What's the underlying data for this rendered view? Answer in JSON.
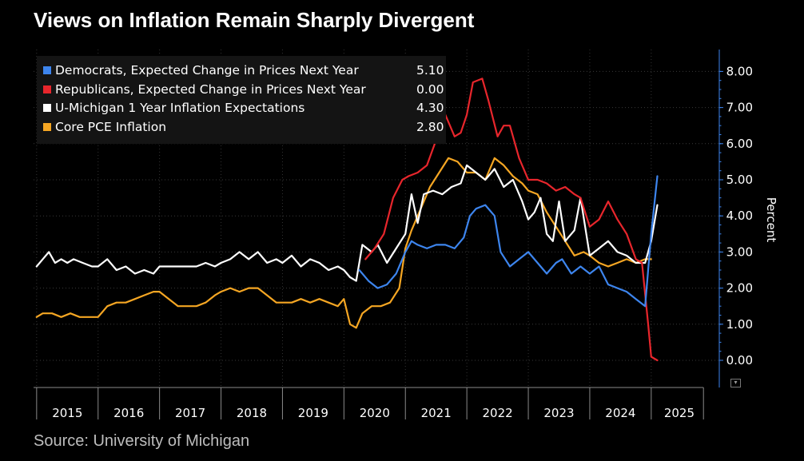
{
  "title": "Views on Inflation Remain Sharply Divergent",
  "source": "Source: University of Michigan",
  "chart_data": {
    "type": "line",
    "title": "Views on Inflation Remain Sharply Divergent",
    "ylabel": "Percent",
    "ylim": [
      -0.5,
      8.5
    ],
    "y_ticks": [
      "0.00",
      "1.00",
      "2.00",
      "3.00",
      "4.00",
      "5.00",
      "6.00",
      "7.00",
      "8.00"
    ],
    "x_ticks": [
      "2015",
      "2016",
      "2017",
      "2018",
      "2019",
      "2020",
      "2021",
      "2022",
      "2023",
      "2024",
      "2025"
    ],
    "xlim": [
      2014.95,
      2025.85
    ],
    "legend_position": "top-left",
    "series": [
      {
        "name": "Democrats, Expected Change in Prices Next Year",
        "value_label": "5.10",
        "color": "#3d85ee",
        "x": [
          2020.25,
          2020.4,
          2020.55,
          2020.7,
          2020.85,
          2021.0,
          2021.1,
          2021.2,
          2021.35,
          2021.5,
          2021.65,
          2021.8,
          2021.95,
          2022.05,
          2022.15,
          2022.3,
          2022.45,
          2022.55,
          2022.7,
          2022.85,
          2023.0,
          2023.15,
          2023.3,
          2023.45,
          2023.55,
          2023.7,
          2023.85,
          2024.0,
          2024.15,
          2024.3,
          2024.45,
          2024.6,
          2024.75,
          2024.9,
          2025.0,
          2025.1
        ],
        "y": [
          2.5,
          2.2,
          2.0,
          2.1,
          2.4,
          3.0,
          3.3,
          3.2,
          3.1,
          3.2,
          3.2,
          3.1,
          3.4,
          4.0,
          4.2,
          4.3,
          4.0,
          3.0,
          2.6,
          2.8,
          3.0,
          2.7,
          2.4,
          2.7,
          2.8,
          2.4,
          2.6,
          2.4,
          2.6,
          2.1,
          2.0,
          1.9,
          1.7,
          1.5,
          3.5,
          5.1
        ]
      },
      {
        "name": "Republicans, Expected Change in Prices Next Year",
        "value_label": "0.00",
        "color": "#e8262c",
        "x": [
          2020.35,
          2020.5,
          2020.65,
          2020.8,
          2020.95,
          2021.05,
          2021.2,
          2021.35,
          2021.5,
          2021.65,
          2021.8,
          2021.9,
          2022.0,
          2022.1,
          2022.25,
          2022.35,
          2022.5,
          2022.6,
          2022.7,
          2022.85,
          2023.0,
          2023.15,
          2023.3,
          2023.45,
          2023.6,
          2023.75,
          2023.85,
          2024.0,
          2024.15,
          2024.3,
          2024.45,
          2024.6,
          2024.75,
          2024.85,
          2024.95,
          2025.0,
          2025.1
        ],
        "y": [
          2.8,
          3.1,
          3.5,
          4.5,
          5.0,
          5.1,
          5.2,
          5.4,
          6.1,
          6.8,
          6.2,
          6.3,
          6.8,
          7.7,
          7.8,
          7.2,
          6.2,
          6.5,
          6.5,
          5.6,
          5.0,
          5.0,
          4.9,
          4.7,
          4.8,
          4.6,
          4.5,
          3.7,
          3.9,
          4.4,
          3.9,
          3.5,
          2.8,
          2.7,
          1.0,
          0.1,
          0.0
        ]
      },
      {
        "name": "U-Michigan 1 Year Inflation Expectations",
        "value_label": "4.30",
        "color": "#ffffff",
        "x": [
          2015.0,
          2015.1,
          2015.2,
          2015.3,
          2015.4,
          2015.5,
          2015.6,
          2015.75,
          2015.9,
          2016.0,
          2016.15,
          2016.3,
          2016.45,
          2016.6,
          2016.75,
          2016.9,
          2017.0,
          2017.15,
          2017.3,
          2017.45,
          2017.6,
          2017.75,
          2017.9,
          2018.0,
          2018.15,
          2018.3,
          2018.45,
          2018.6,
          2018.75,
          2018.9,
          2019.0,
          2019.15,
          2019.3,
          2019.45,
          2019.6,
          2019.75,
          2019.9,
          2020.0,
          2020.1,
          2020.2,
          2020.3,
          2020.45,
          2020.55,
          2020.7,
          2020.85,
          2021.0,
          2021.1,
          2021.2,
          2021.3,
          2021.45,
          2021.6,
          2021.75,
          2021.9,
          2022.0,
          2022.15,
          2022.3,
          2022.45,
          2022.6,
          2022.75,
          2022.9,
          2023.0,
          2023.1,
          2023.2,
          2023.3,
          2023.4,
          2023.5,
          2023.6,
          2023.75,
          2023.85,
          2024.0,
          2024.15,
          2024.3,
          2024.45,
          2024.6,
          2024.75,
          2024.9,
          2025.0,
          2025.1
        ],
        "y": [
          2.6,
          2.8,
          3.0,
          2.7,
          2.8,
          2.7,
          2.8,
          2.7,
          2.6,
          2.6,
          2.8,
          2.5,
          2.6,
          2.4,
          2.5,
          2.4,
          2.6,
          2.6,
          2.6,
          2.6,
          2.6,
          2.7,
          2.6,
          2.7,
          2.8,
          3.0,
          2.8,
          3.0,
          2.7,
          2.8,
          2.7,
          2.9,
          2.6,
          2.8,
          2.7,
          2.5,
          2.6,
          2.5,
          2.3,
          2.2,
          3.2,
          3.0,
          3.2,
          2.7,
          3.1,
          3.5,
          4.6,
          3.8,
          4.6,
          4.7,
          4.6,
          4.8,
          4.9,
          5.4,
          5.2,
          5.0,
          5.3,
          4.8,
          5.0,
          4.4,
          3.9,
          4.1,
          4.5,
          3.5,
          3.3,
          4.4,
          3.3,
          3.6,
          4.5,
          2.9,
          3.1,
          3.3,
          3.0,
          2.9,
          2.7,
          2.7,
          3.3,
          4.3
        ]
      },
      {
        "name": "Core PCE Inflation",
        "value_label": "2.80",
        "color": "#f5a623",
        "x": [
          2015.0,
          2015.1,
          2015.25,
          2015.4,
          2015.55,
          2015.7,
          2015.85,
          2016.0,
          2016.15,
          2016.3,
          2016.45,
          2016.6,
          2016.75,
          2016.9,
          2017.0,
          2017.15,
          2017.3,
          2017.45,
          2017.6,
          2017.75,
          2017.9,
          2018.0,
          2018.15,
          2018.3,
          2018.45,
          2018.6,
          2018.75,
          2018.9,
          2019.0,
          2019.15,
          2019.3,
          2019.45,
          2019.6,
          2019.75,
          2019.9,
          2020.0,
          2020.1,
          2020.2,
          2020.3,
          2020.45,
          2020.6,
          2020.75,
          2020.9,
          2021.0,
          2021.1,
          2021.25,
          2021.4,
          2021.55,
          2021.7,
          2021.85,
          2022.0,
          2022.15,
          2022.3,
          2022.45,
          2022.6,
          2022.75,
          2022.9,
          2023.0,
          2023.15,
          2023.3,
          2023.45,
          2023.6,
          2023.75,
          2023.9,
          2024.0,
          2024.15,
          2024.3,
          2024.45,
          2024.6,
          2024.75,
          2024.9,
          2025.0
        ],
        "y": [
          1.2,
          1.3,
          1.3,
          1.2,
          1.3,
          1.2,
          1.2,
          1.2,
          1.5,
          1.6,
          1.6,
          1.7,
          1.8,
          1.9,
          1.9,
          1.7,
          1.5,
          1.5,
          1.5,
          1.6,
          1.8,
          1.9,
          2.0,
          1.9,
          2.0,
          2.0,
          1.8,
          1.6,
          1.6,
          1.6,
          1.7,
          1.6,
          1.7,
          1.6,
          1.5,
          1.7,
          1.0,
          0.9,
          1.3,
          1.5,
          1.5,
          1.6,
          2.0,
          3.1,
          3.6,
          4.2,
          4.8,
          5.2,
          5.6,
          5.5,
          5.2,
          5.2,
          5.0,
          5.6,
          5.4,
          5.1,
          4.9,
          4.7,
          4.6,
          4.1,
          3.7,
          3.3,
          2.9,
          3.0,
          2.9,
          2.7,
          2.6,
          2.7,
          2.8,
          2.7,
          2.8,
          2.8
        ]
      }
    ]
  }
}
